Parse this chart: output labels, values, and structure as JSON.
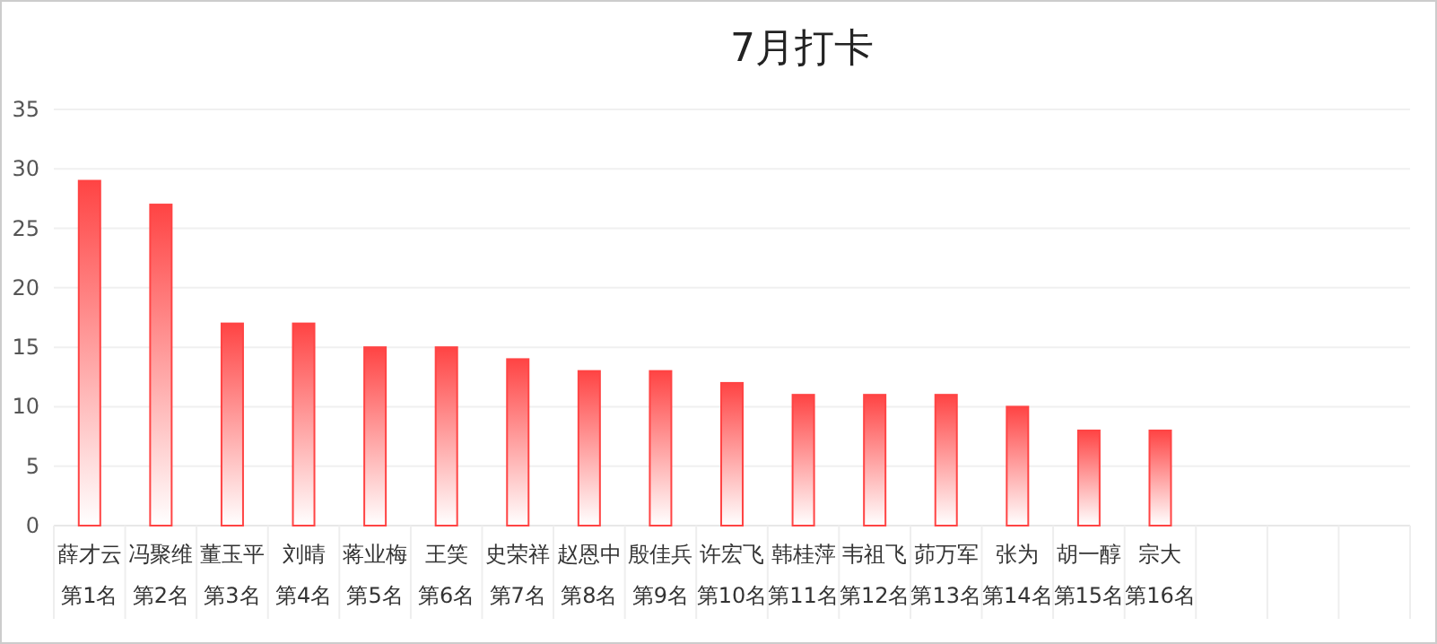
{
  "chart_data": {
    "type": "bar",
    "title": "7月打卡",
    "categories": [
      "薛才云",
      "冯聚维",
      "董玉平",
      "刘晴",
      "蒋业梅",
      "王笑",
      "史荣祥",
      "赵恩中",
      "殷佳兵",
      "许宏飞",
      "韩桂萍",
      "韦祖飞",
      "茆万军",
      "张为",
      "胡一醇",
      "宗大",
      null,
      null,
      null
    ],
    "values": [
      29,
      27,
      17,
      17,
      15,
      15,
      14,
      13,
      13,
      12,
      11,
      11,
      11,
      10,
      8,
      8,
      null,
      null,
      null
    ],
    "annotations": [
      "第1名",
      "第2名",
      "第3名",
      "第4名",
      "第5名",
      "第6名",
      "第7名",
      "第8名",
      "第9名",
      "第10名",
      "第11名",
      "第12名",
      "第13名",
      "第14名",
      "第15名",
      "第16名"
    ],
    "color": "#ff4444",
    "ylim": [
      0,
      35
    ],
    "yticks": [
      0,
      5,
      10,
      15,
      20,
      25,
      30,
      35
    ],
    "grid": "y"
  }
}
